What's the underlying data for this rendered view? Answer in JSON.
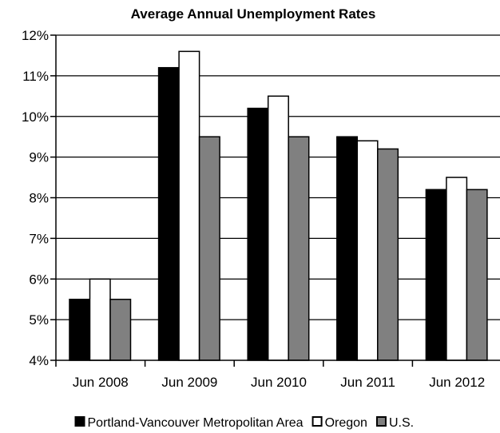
{
  "chart_data": {
    "type": "bar",
    "title": "Average Annual Unemployment Rates",
    "xlabel": "",
    "ylabel": "",
    "categories": [
      "Jun 2008",
      "Jun 2009",
      "Jun 2010",
      "Jun 2011",
      "Jun 2012"
    ],
    "series": [
      {
        "name": "Portland-Vancouver Metropolitan Area",
        "color": "#000000",
        "values": [
          5.5,
          11.2,
          10.2,
          9.5,
          8.2
        ]
      },
      {
        "name": "Oregon",
        "color": "#ffffff",
        "values": [
          6.0,
          11.6,
          10.5,
          9.4,
          8.5
        ]
      },
      {
        "name": "U.S.",
        "color": "#808080",
        "values": [
          5.5,
          9.5,
          9.5,
          9.2,
          8.2
        ]
      }
    ],
    "ylim": [
      4,
      12
    ],
    "yticks": [
      4,
      5,
      6,
      7,
      8,
      9,
      10,
      11,
      12
    ],
    "ytick_labels": [
      "4%",
      "5%",
      "6%",
      "7%",
      "8%",
      "9%",
      "10%",
      "11%",
      "12%"
    ],
    "grid": true,
    "legend_position": "bottom"
  }
}
